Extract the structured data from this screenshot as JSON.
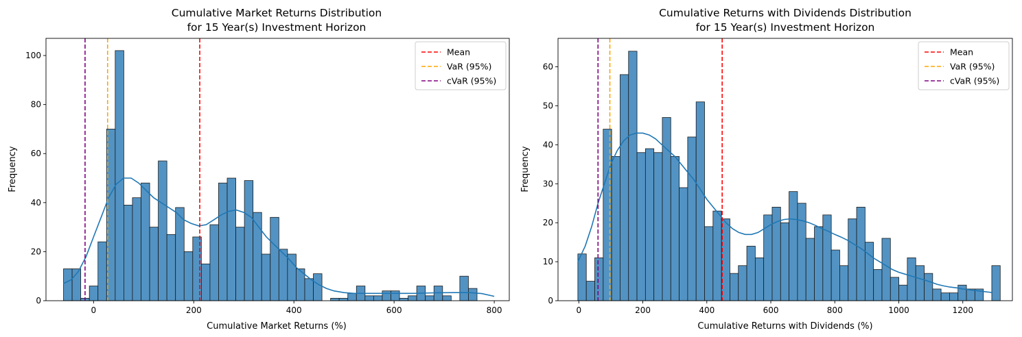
{
  "chart_data": [
    {
      "type": "bar",
      "title_line1": "Cumulative Market Returns Distribution",
      "title_line2": "for 15 Year(s) Investment Horizon",
      "xlabel": "Cumulative Market Returns (%)",
      "ylabel": "Frequency",
      "xlim": [
        -95,
        830
      ],
      "ylim": [
        0,
        107
      ],
      "xticks": [
        0,
        200,
        400,
        600,
        800
      ],
      "yticks": [
        0,
        20,
        40,
        60,
        80,
        100
      ],
      "bin_start": -60,
      "bin_width": 17.2,
      "values": [
        13,
        13,
        1,
        6,
        24,
        70,
        102,
        39,
        42,
        48,
        30,
        57,
        27,
        38,
        20,
        26,
        15,
        31,
        48,
        50,
        30,
        49,
        36,
        19,
        34,
        21,
        19,
        13,
        9,
        11,
        0,
        1,
        1,
        3,
        6,
        2,
        2,
        4,
        4,
        1,
        2,
        6,
        2,
        6,
        2,
        0,
        10,
        5,
        0
      ],
      "kde": [
        [
          -60,
          7
        ],
        [
          -45,
          8.5
        ],
        [
          -30,
          12
        ],
        [
          -15,
          18
        ],
        [
          0,
          26
        ],
        [
          15,
          34
        ],
        [
          30,
          42
        ],
        [
          45,
          47.5
        ],
        [
          60,
          50
        ],
        [
          75,
          50
        ],
        [
          90,
          48
        ],
        [
          105,
          45
        ],
        [
          120,
          42
        ],
        [
          135,
          40
        ],
        [
          150,
          38
        ],
        [
          165,
          36
        ],
        [
          180,
          33
        ],
        [
          195,
          31.5
        ],
        [
          210,
          30.5
        ],
        [
          225,
          31
        ],
        [
          240,
          33
        ],
        [
          255,
          35
        ],
        [
          270,
          36.5
        ],
        [
          285,
          37
        ],
        [
          300,
          36
        ],
        [
          315,
          34
        ],
        [
          330,
          30
        ],
        [
          345,
          26
        ],
        [
          360,
          23
        ],
        [
          375,
          20
        ],
        [
          390,
          17
        ],
        [
          405,
          13.5
        ],
        [
          420,
          11
        ],
        [
          435,
          8.5
        ],
        [
          450,
          6.5
        ],
        [
          465,
          5
        ],
        [
          480,
          4
        ],
        [
          500,
          3.3
        ],
        [
          520,
          3
        ],
        [
          560,
          3
        ],
        [
          600,
          3
        ],
        [
          640,
          3
        ],
        [
          680,
          3.2
        ],
        [
          720,
          3.3
        ],
        [
          750,
          3.3
        ],
        [
          775,
          2.9
        ],
        [
          800,
          1.8
        ]
      ],
      "lines": [
        {
          "name": "Mean",
          "x": 212,
          "color": "#ff0000"
        },
        {
          "name": "VaR (95%)",
          "x": 28,
          "color": "#ffa500"
        },
        {
          "name": "cVaR (95%)",
          "x": -17,
          "color": "#800080"
        }
      ],
      "legend_position": "top-right"
    },
    {
      "type": "bar",
      "title_line1": "Cumulative Returns with Dividends Distribution",
      "title_line2": "for 15 Year(s) Investment Horizon",
      "xlabel": "Cumulative Returns with Dividends (%)",
      "ylabel": "Frequency",
      "xlim": [
        -65,
        1355
      ],
      "ylim": [
        0,
        67.3
      ],
      "xticks": [
        0,
        200,
        400,
        600,
        800,
        1000,
        1200
      ],
      "yticks": [
        0,
        10,
        20,
        30,
        40,
        50,
        60
      ],
      "bin_start": -3,
      "bin_width": 26.4,
      "values": [
        12,
        5,
        11,
        44,
        37,
        58,
        64,
        38,
        39,
        38,
        47,
        37,
        29,
        42,
        51,
        19,
        23,
        21,
        7,
        9,
        14,
        11,
        22,
        24,
        20,
        28,
        25,
        16,
        19,
        22,
        13,
        9,
        21,
        24,
        15,
        8,
        16,
        6,
        4,
        11,
        9,
        7,
        3,
        2,
        2,
        4,
        3,
        3,
        0,
        9
      ],
      "kde": [
        [
          -3,
          10
        ],
        [
          20,
          14
        ],
        [
          40,
          19
        ],
        [
          60,
          25
        ],
        [
          80,
          30
        ],
        [
          100,
          35
        ],
        [
          120,
          38.5
        ],
        [
          140,
          41
        ],
        [
          160,
          42.5
        ],
        [
          180,
          43
        ],
        [
          200,
          43
        ],
        [
          220,
          42.5
        ],
        [
          240,
          41.5
        ],
        [
          260,
          40
        ],
        [
          280,
          38.5
        ],
        [
          300,
          37
        ],
        [
          320,
          35
        ],
        [
          340,
          33
        ],
        [
          360,
          31
        ],
        [
          380,
          28.5
        ],
        [
          400,
          26
        ],
        [
          420,
          24
        ],
        [
          440,
          22
        ],
        [
          460,
          20
        ],
        [
          480,
          18.5
        ],
        [
          500,
          17.5
        ],
        [
          520,
          17
        ],
        [
          540,
          17
        ],
        [
          560,
          17.5
        ],
        [
          580,
          18.5
        ],
        [
          600,
          19.5
        ],
        [
          620,
          20.3
        ],
        [
          640,
          20.8
        ],
        [
          660,
          21
        ],
        [
          680,
          20.8
        ],
        [
          700,
          20.5
        ],
        [
          720,
          20
        ],
        [
          740,
          19.3
        ],
        [
          760,
          18.5
        ],
        [
          780,
          17.8
        ],
        [
          800,
          17
        ],
        [
          820,
          16.3
        ],
        [
          840,
          15.5
        ],
        [
          860,
          14.5
        ],
        [
          880,
          13.5
        ],
        [
          900,
          12.3
        ],
        [
          920,
          11
        ],
        [
          940,
          10
        ],
        [
          960,
          9
        ],
        [
          980,
          8
        ],
        [
          1000,
          7.3
        ],
        [
          1020,
          6.8
        ],
        [
          1040,
          6.3
        ],
        [
          1060,
          5.8
        ],
        [
          1080,
          5.3
        ],
        [
          1100,
          4.8
        ],
        [
          1120,
          4.2
        ],
        [
          1140,
          3.8
        ],
        [
          1160,
          3.5
        ],
        [
          1180,
          3.3
        ],
        [
          1200,
          3
        ],
        [
          1220,
          2.8
        ],
        [
          1240,
          2.6
        ],
        [
          1260,
          2.4
        ],
        [
          1290,
          2.1
        ]
      ],
      "lines": [
        {
          "name": "Mean",
          "x": 448,
          "color": "#ff0000"
        },
        {
          "name": "VaR (95%)",
          "x": 97,
          "color": "#ffa500"
        },
        {
          "name": "cVaR (95%)",
          "x": 60,
          "color": "#800080"
        }
      ],
      "legend_position": "top-right"
    }
  ]
}
